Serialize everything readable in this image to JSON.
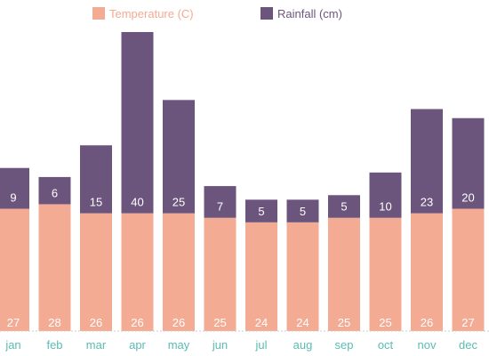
{
  "chart_data": {
    "type": "bar",
    "stacked": true,
    "categories": [
      "jan",
      "feb",
      "mar",
      "apr",
      "may",
      "jun",
      "jul",
      "aug",
      "sep",
      "oct",
      "nov",
      "dec"
    ],
    "series": [
      {
        "name": "Temperature (C)",
        "color": "#f4ab93",
        "values": [
          27,
          28,
          26,
          26,
          26,
          25,
          24,
          24,
          25,
          25,
          26,
          27
        ]
      },
      {
        "name": "Rainfall (cm)",
        "color": "#6b557c",
        "values": [
          9,
          6,
          15,
          40,
          25,
          7,
          5,
          5,
          5,
          10,
          23,
          20
        ]
      }
    ],
    "ylim": [
      0,
      66
    ],
    "grid": false,
    "legend": "top",
    "tick_label_color": "#5bbcb2",
    "legend_text_color": "#f4ab93",
    "legend_text_color_2": "#6b557c"
  }
}
